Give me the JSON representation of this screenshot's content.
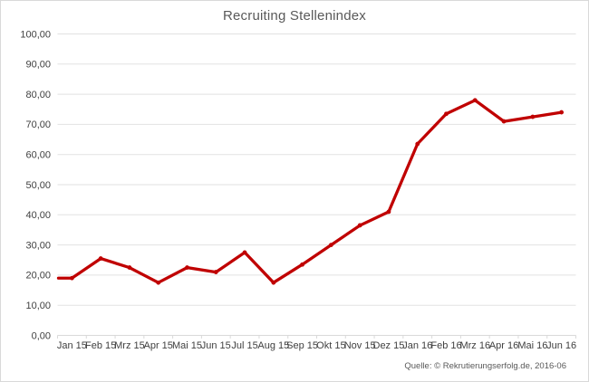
{
  "title": "Recruiting Stellenindex",
  "source": "Quelle: © Rekrutierungserfolg.de, 2016-06",
  "colors": {
    "line": "#c00000",
    "grid": "#e2e2e2",
    "axis": "#d9d9d9",
    "tick_text": "#404040",
    "title_text": "#595959",
    "background": "#ffffff",
    "frame_border": "#d9d9d9"
  },
  "chart_data": {
    "type": "line",
    "title": "Recruiting Stellenindex",
    "categories": [
      "Jan 15",
      "Feb 15",
      "Mrz 15",
      "Apr 15",
      "Mai 15",
      "Jun 15",
      "Jul 15",
      "Aug 15",
      "Sep 15",
      "Okt 15",
      "Nov 15",
      "Dez 15",
      "Jan 16",
      "Feb 16",
      "Mrz 16",
      "Apr 16",
      "Mai 16",
      "Jun 16"
    ],
    "series": [
      {
        "name": "Recruiting Stellenindex",
        "values": [
          19,
          25.5,
          22.5,
          17.5,
          22.5,
          21,
          27.5,
          17.5,
          23.5,
          30,
          36.5,
          41,
          63.5,
          73.5,
          78,
          71,
          72.5,
          74
        ],
        "color": "#c00000",
        "markers": true,
        "starts_at_plot_edge": true
      }
    ],
    "xlabel": "",
    "ylabel": "",
    "ylim": [
      0,
      100
    ],
    "y_tick_step": 10,
    "y_ticks": [
      0,
      10,
      20,
      30,
      40,
      50,
      60,
      70,
      80,
      90,
      100
    ],
    "y_tick_labels": [
      "0,00",
      "10,00",
      "20,00",
      "30,00",
      "40,00",
      "50,00",
      "60,00",
      "70,00",
      "80,00",
      "90,00",
      "100,00"
    ],
    "grid": "horizontal",
    "legend_position": "none",
    "annotation": "Quelle: © Rekrutierungserfolg.de, 2016-06"
  }
}
